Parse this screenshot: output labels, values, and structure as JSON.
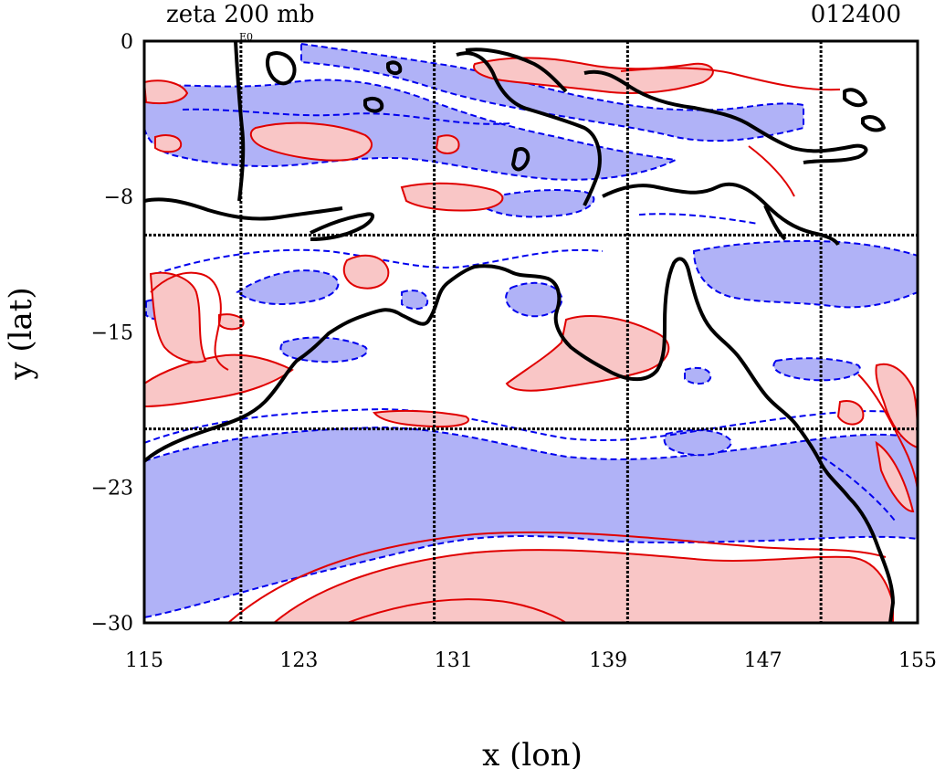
{
  "plot": {
    "title_left": "zeta 200 mb",
    "title_right": "012400",
    "xlabel": "x (lon)",
    "ylabel": "y (lat)",
    "x_ticks": [
      "115",
      "123",
      "131",
      "139",
      "147",
      "155"
    ],
    "y_ticks": [
      "0",
      "-8",
      "-15",
      "-23",
      "-30"
    ],
    "xlim": [
      115,
      155
    ],
    "ylim": [
      -30,
      0
    ],
    "grid_lon": [
      120,
      130,
      140,
      150
    ],
    "grid_lat": [
      -10,
      -20
    ],
    "small_label": "E0"
  },
  "colors": {
    "positive_fill": "#f9c6c6",
    "positive_line": "#e00000",
    "negative_fill": "#b0b2f7",
    "negative_line": "#0000ee",
    "coast": "#000000"
  }
}
